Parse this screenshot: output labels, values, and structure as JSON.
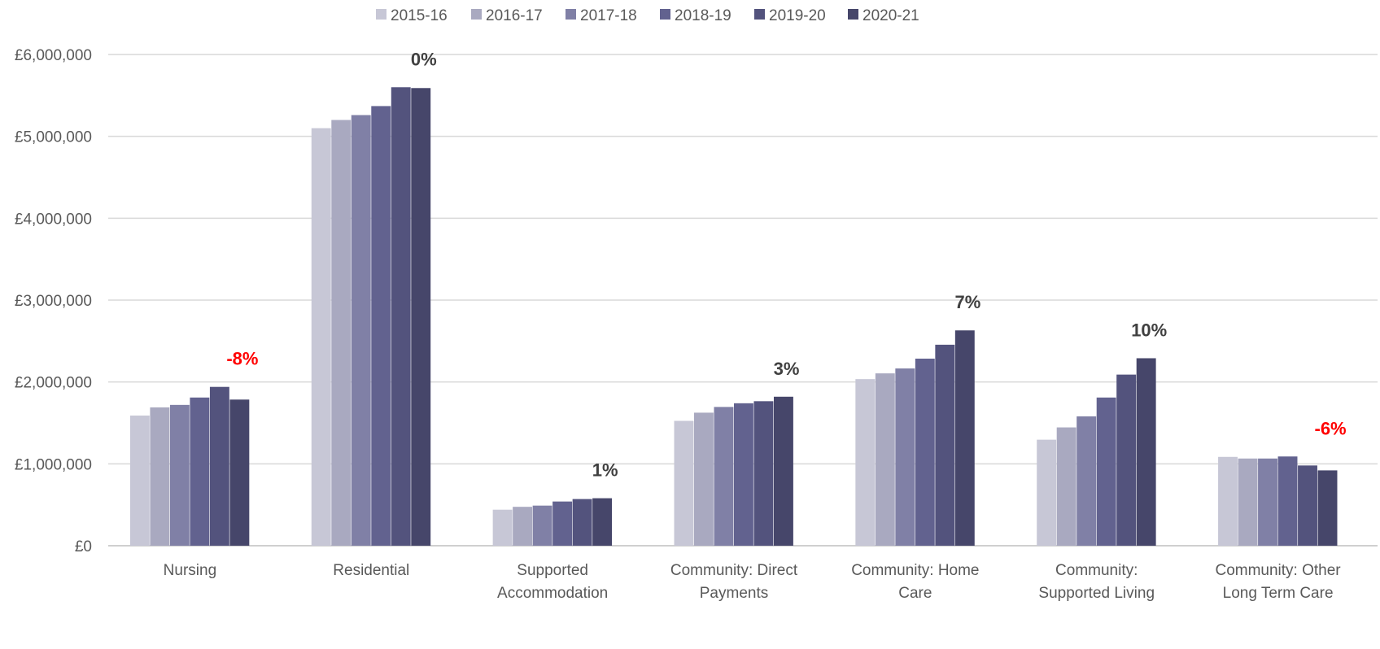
{
  "chart_data": {
    "type": "bar",
    "categories": [
      [
        "Nursing"
      ],
      [
        "Residential"
      ],
      [
        "Supported",
        "Accommodation"
      ],
      [
        "Community: Direct",
        "Payments"
      ],
      [
        "Community: Home",
        "Care"
      ],
      [
        "Community:",
        "Supported Living"
      ],
      [
        "Community: Other",
        "Long Term Care"
      ]
    ],
    "series": [
      {
        "name": "2015-16",
        "color": "#c7c7d6",
        "values": [
          1590000,
          5100000,
          440000,
          1525000,
          2035000,
          1295000,
          1085000
        ]
      },
      {
        "name": "2016-17",
        "color": "#a9a9c0",
        "values": [
          1690000,
          5200000,
          475000,
          1625000,
          2105000,
          1445000,
          1065000
        ]
      },
      {
        "name": "2017-18",
        "color": "#8080a6",
        "values": [
          1720000,
          5260000,
          490000,
          1695000,
          2165000,
          1580000,
          1065000
        ]
      },
      {
        "name": "2018-19",
        "color": "#62628f",
        "values": [
          1810000,
          5370000,
          540000,
          1740000,
          2285000,
          1810000,
          1090000
        ]
      },
      {
        "name": "2019-20",
        "color": "#53537d",
        "values": [
          1940000,
          5600000,
          570000,
          1765000,
          2455000,
          2090000,
          980000
        ]
      },
      {
        "name": "2020-21",
        "color": "#46466a",
        "values": [
          1785000,
          5590000,
          580000,
          1820000,
          2630000,
          2290000,
          920000
        ]
      }
    ],
    "change_labels": [
      {
        "text": "-8%",
        "color": "#ff0000"
      },
      {
        "text": "0%",
        "color": "#404040"
      },
      {
        "text": "1%",
        "color": "#404040"
      },
      {
        "text": "3%",
        "color": "#404040"
      },
      {
        "text": "7%",
        "color": "#404040"
      },
      {
        "text": "10%",
        "color": "#404040"
      },
      {
        "text": "-6%",
        "color": "#ff0000"
      }
    ],
    "yticks": [
      "£0",
      "£1,000,000",
      "£2,000,000",
      "£3,000,000",
      "£4,000,000",
      "£5,000,000",
      "£6,000,000"
    ],
    "ylim": [
      0,
      6000000
    ],
    "grid": true,
    "legend_position": "top"
  }
}
